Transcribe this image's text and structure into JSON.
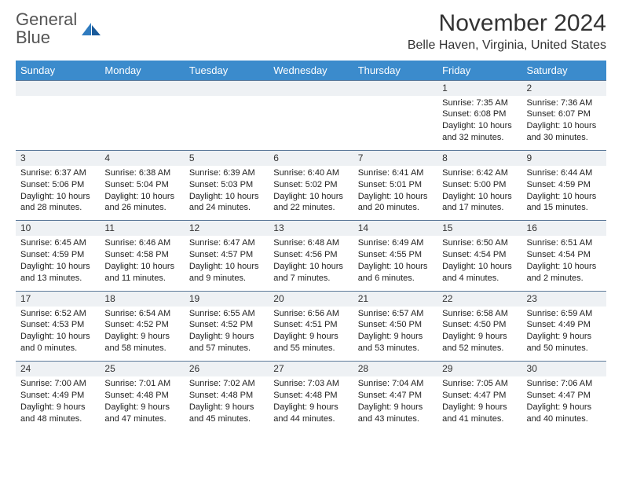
{
  "logo": {
    "text1": "General",
    "text2": "Blue"
  },
  "title": "November 2024",
  "location": "Belle Haven, Virginia, United States",
  "header_bg": "#3b8bcc",
  "daynum_bg": "#eef1f4",
  "border_color": "#5d7a9a",
  "day_headers": [
    "Sunday",
    "Monday",
    "Tuesday",
    "Wednesday",
    "Thursday",
    "Friday",
    "Saturday"
  ],
  "weeks": [
    [
      {
        "n": "",
        "lines": [
          "",
          "",
          "",
          ""
        ]
      },
      {
        "n": "",
        "lines": [
          "",
          "",
          "",
          ""
        ]
      },
      {
        "n": "",
        "lines": [
          "",
          "",
          "",
          ""
        ]
      },
      {
        "n": "",
        "lines": [
          "",
          "",
          "",
          ""
        ]
      },
      {
        "n": "",
        "lines": [
          "",
          "",
          "",
          ""
        ]
      },
      {
        "n": "1",
        "lines": [
          "Sunrise: 7:35 AM",
          "Sunset: 6:08 PM",
          "Daylight: 10 hours",
          "and 32 minutes."
        ]
      },
      {
        "n": "2",
        "lines": [
          "Sunrise: 7:36 AM",
          "Sunset: 6:07 PM",
          "Daylight: 10 hours",
          "and 30 minutes."
        ]
      }
    ],
    [
      {
        "n": "3",
        "lines": [
          "Sunrise: 6:37 AM",
          "Sunset: 5:06 PM",
          "Daylight: 10 hours",
          "and 28 minutes."
        ]
      },
      {
        "n": "4",
        "lines": [
          "Sunrise: 6:38 AM",
          "Sunset: 5:04 PM",
          "Daylight: 10 hours",
          "and 26 minutes."
        ]
      },
      {
        "n": "5",
        "lines": [
          "Sunrise: 6:39 AM",
          "Sunset: 5:03 PM",
          "Daylight: 10 hours",
          "and 24 minutes."
        ]
      },
      {
        "n": "6",
        "lines": [
          "Sunrise: 6:40 AM",
          "Sunset: 5:02 PM",
          "Daylight: 10 hours",
          "and 22 minutes."
        ]
      },
      {
        "n": "7",
        "lines": [
          "Sunrise: 6:41 AM",
          "Sunset: 5:01 PM",
          "Daylight: 10 hours",
          "and 20 minutes."
        ]
      },
      {
        "n": "8",
        "lines": [
          "Sunrise: 6:42 AM",
          "Sunset: 5:00 PM",
          "Daylight: 10 hours",
          "and 17 minutes."
        ]
      },
      {
        "n": "9",
        "lines": [
          "Sunrise: 6:44 AM",
          "Sunset: 4:59 PM",
          "Daylight: 10 hours",
          "and 15 minutes."
        ]
      }
    ],
    [
      {
        "n": "10",
        "lines": [
          "Sunrise: 6:45 AM",
          "Sunset: 4:59 PM",
          "Daylight: 10 hours",
          "and 13 minutes."
        ]
      },
      {
        "n": "11",
        "lines": [
          "Sunrise: 6:46 AM",
          "Sunset: 4:58 PM",
          "Daylight: 10 hours",
          "and 11 minutes."
        ]
      },
      {
        "n": "12",
        "lines": [
          "Sunrise: 6:47 AM",
          "Sunset: 4:57 PM",
          "Daylight: 10 hours",
          "and 9 minutes."
        ]
      },
      {
        "n": "13",
        "lines": [
          "Sunrise: 6:48 AM",
          "Sunset: 4:56 PM",
          "Daylight: 10 hours",
          "and 7 minutes."
        ]
      },
      {
        "n": "14",
        "lines": [
          "Sunrise: 6:49 AM",
          "Sunset: 4:55 PM",
          "Daylight: 10 hours",
          "and 6 minutes."
        ]
      },
      {
        "n": "15",
        "lines": [
          "Sunrise: 6:50 AM",
          "Sunset: 4:54 PM",
          "Daylight: 10 hours",
          "and 4 minutes."
        ]
      },
      {
        "n": "16",
        "lines": [
          "Sunrise: 6:51 AM",
          "Sunset: 4:54 PM",
          "Daylight: 10 hours",
          "and 2 minutes."
        ]
      }
    ],
    [
      {
        "n": "17",
        "lines": [
          "Sunrise: 6:52 AM",
          "Sunset: 4:53 PM",
          "Daylight: 10 hours",
          "and 0 minutes."
        ]
      },
      {
        "n": "18",
        "lines": [
          "Sunrise: 6:54 AM",
          "Sunset: 4:52 PM",
          "Daylight: 9 hours",
          "and 58 minutes."
        ]
      },
      {
        "n": "19",
        "lines": [
          "Sunrise: 6:55 AM",
          "Sunset: 4:52 PM",
          "Daylight: 9 hours",
          "and 57 minutes."
        ]
      },
      {
        "n": "20",
        "lines": [
          "Sunrise: 6:56 AM",
          "Sunset: 4:51 PM",
          "Daylight: 9 hours",
          "and 55 minutes."
        ]
      },
      {
        "n": "21",
        "lines": [
          "Sunrise: 6:57 AM",
          "Sunset: 4:50 PM",
          "Daylight: 9 hours",
          "and 53 minutes."
        ]
      },
      {
        "n": "22",
        "lines": [
          "Sunrise: 6:58 AM",
          "Sunset: 4:50 PM",
          "Daylight: 9 hours",
          "and 52 minutes."
        ]
      },
      {
        "n": "23",
        "lines": [
          "Sunrise: 6:59 AM",
          "Sunset: 4:49 PM",
          "Daylight: 9 hours",
          "and 50 minutes."
        ]
      }
    ],
    [
      {
        "n": "24",
        "lines": [
          "Sunrise: 7:00 AM",
          "Sunset: 4:49 PM",
          "Daylight: 9 hours",
          "and 48 minutes."
        ]
      },
      {
        "n": "25",
        "lines": [
          "Sunrise: 7:01 AM",
          "Sunset: 4:48 PM",
          "Daylight: 9 hours",
          "and 47 minutes."
        ]
      },
      {
        "n": "26",
        "lines": [
          "Sunrise: 7:02 AM",
          "Sunset: 4:48 PM",
          "Daylight: 9 hours",
          "and 45 minutes."
        ]
      },
      {
        "n": "27",
        "lines": [
          "Sunrise: 7:03 AM",
          "Sunset: 4:48 PM",
          "Daylight: 9 hours",
          "and 44 minutes."
        ]
      },
      {
        "n": "28",
        "lines": [
          "Sunrise: 7:04 AM",
          "Sunset: 4:47 PM",
          "Daylight: 9 hours",
          "and 43 minutes."
        ]
      },
      {
        "n": "29",
        "lines": [
          "Sunrise: 7:05 AM",
          "Sunset: 4:47 PM",
          "Daylight: 9 hours",
          "and 41 minutes."
        ]
      },
      {
        "n": "30",
        "lines": [
          "Sunrise: 7:06 AM",
          "Sunset: 4:47 PM",
          "Daylight: 9 hours",
          "and 40 minutes."
        ]
      }
    ]
  ]
}
